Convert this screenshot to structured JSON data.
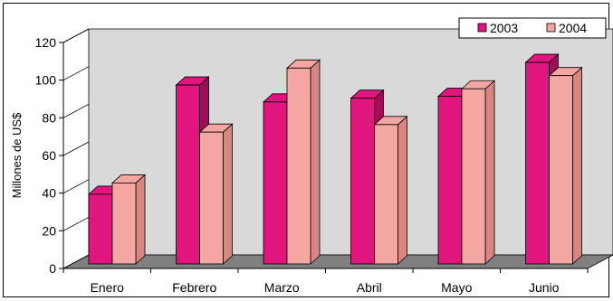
{
  "chart_data": {
    "type": "bar",
    "categories": [
      "Enero",
      "Febrero",
      "Marzo",
      "Abril",
      "Mayo",
      "Junio"
    ],
    "series": [
      {
        "name": "2003",
        "values": [
          37,
          95,
          86,
          88,
          89,
          107
        ]
      },
      {
        "name": "2004",
        "values": [
          43,
          70,
          104,
          74,
          93,
          100
        ]
      }
    ],
    "title": "",
    "xlabel": "",
    "ylabel": "Millones de US$",
    "ylim": [
      0,
      120
    ],
    "yticks": [
      0,
      20,
      40,
      60,
      80,
      100,
      120
    ],
    "yticks_labels": [
      "0",
      "20",
      "40",
      "60",
      "80",
      "100",
      "120"
    ],
    "grid": false,
    "legend_position": "top-right",
    "colors": {
      "series_0": "#E0157E",
      "series_0_side": "#A60A5B",
      "series_1": "#F4A6A3",
      "series_1_side": "#D98683",
      "wall": "#D9D9D9",
      "floor": "#808080",
      "frame_border": "#000000"
    }
  }
}
